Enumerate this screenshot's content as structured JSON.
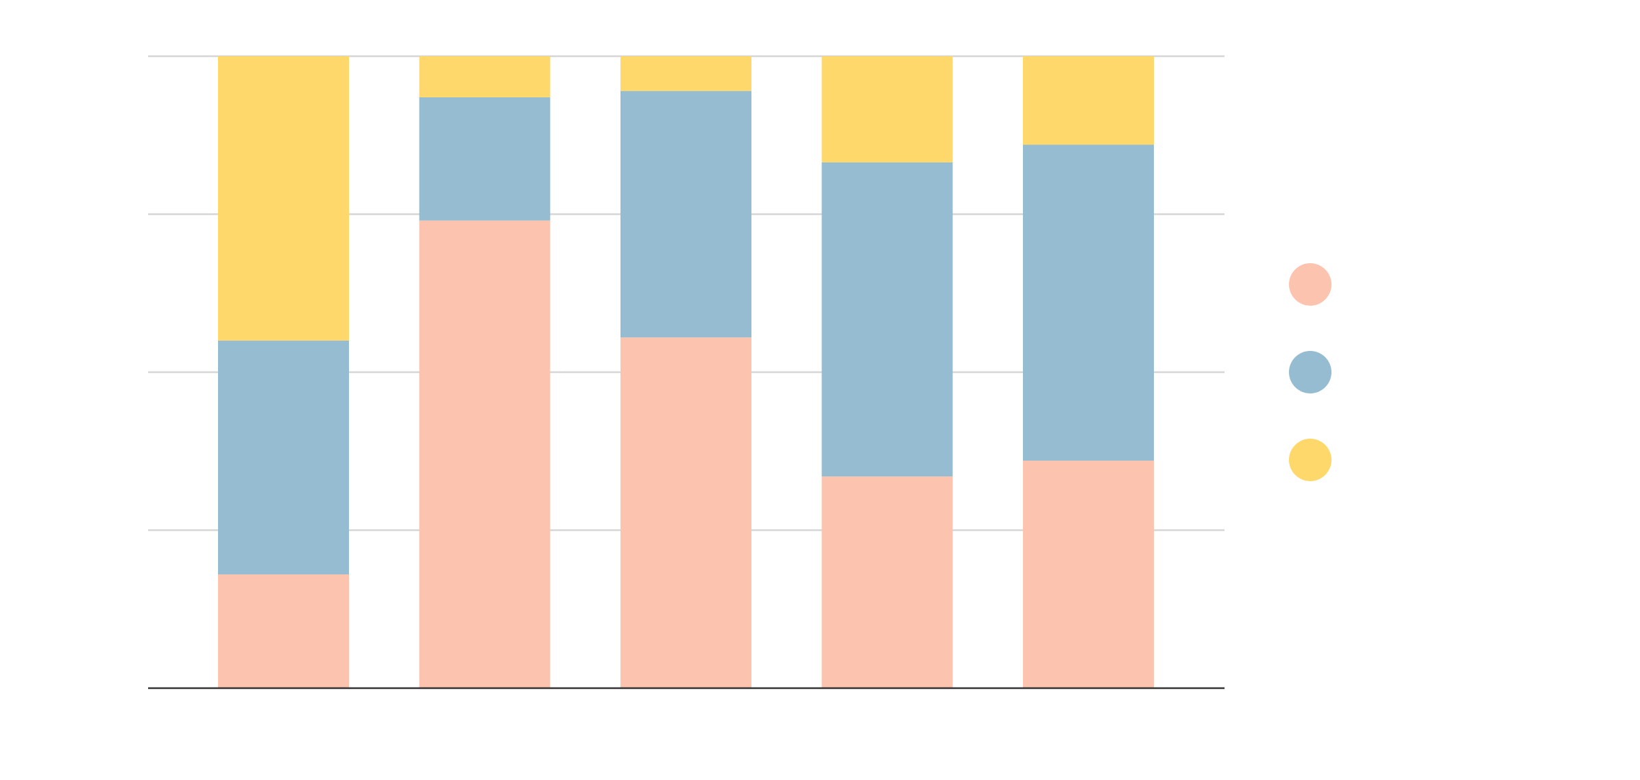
{
  "chart_data": {
    "type": "bar",
    "stacked": true,
    "normalized": true,
    "ylim": [
      0,
      1
    ],
    "grid": true,
    "legend_position": "right",
    "categories": [
      "",
      "",
      "",
      "",
      ""
    ],
    "series": [
      {
        "color": "#fcc3ae",
        "values": [
          0.18,
          0.74,
          0.555,
          0.335,
          0.36
        ]
      },
      {
        "color": "#95bcd0",
        "values": [
          0.37,
          0.195,
          0.39,
          0.497,
          0.5
        ]
      },
      {
        "color": "#fed86a",
        "values": [
          0.45,
          0.065,
          0.055,
          0.168,
          0.14
        ]
      }
    ]
  }
}
